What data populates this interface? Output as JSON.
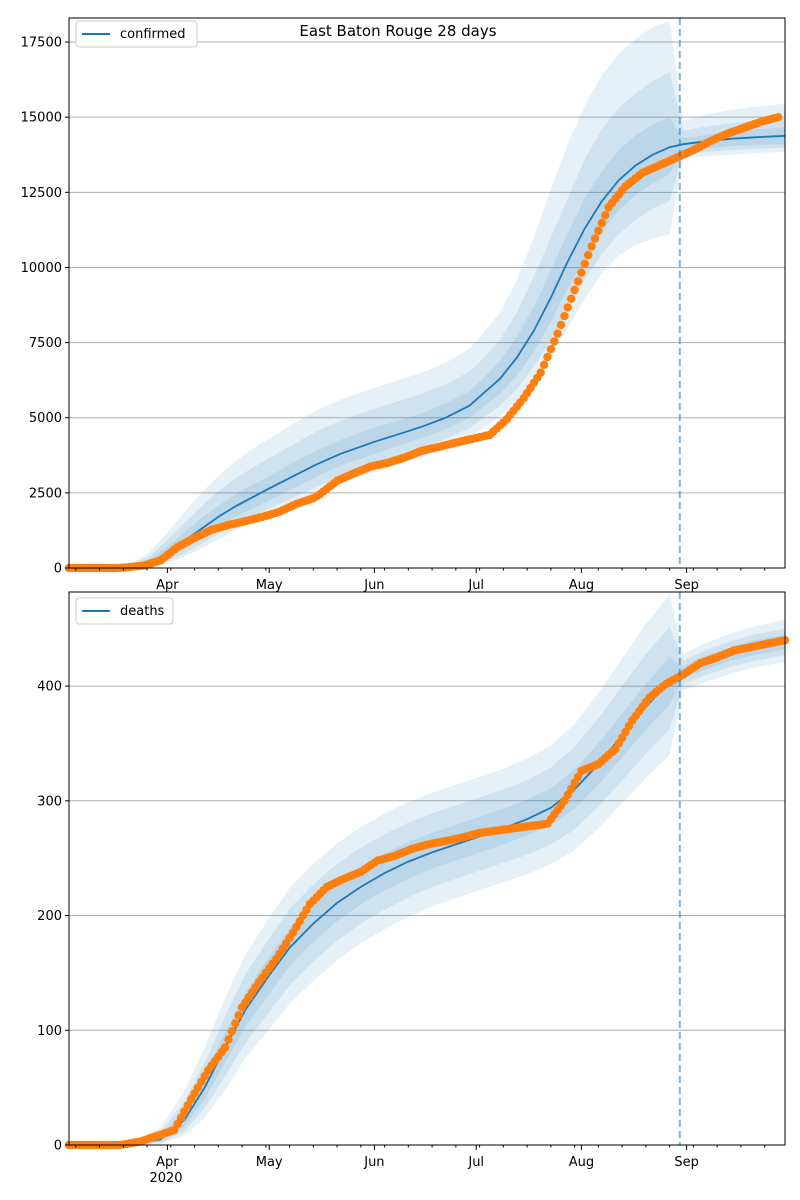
{
  "figure": {
    "title": "East Baton Rouge 28 days",
    "year_label": "2020"
  },
  "colors": {
    "model": "#1f77b4",
    "observed": "#ff7f0e",
    "band": "#1f77b4",
    "grid": "#b0b0b0",
    "forecast_line": "#1f77b4"
  },
  "chart_data": [
    {
      "type": "line",
      "name": "confirmed-panel",
      "legend": "confirmed",
      "legend_location": "top-left",
      "grid": "horizontal",
      "x_axis": {
        "type": "date",
        "range": [
          "2020-03-03",
          "2020-09-30"
        ],
        "tick_labels": [
          "Apr",
          "May",
          "Jun",
          "Jul",
          "Aug",
          "Sep"
        ],
        "tick_dates": [
          "2020-04-01",
          "2020-05-01",
          "2020-06-01",
          "2020-07-01",
          "2020-08-01",
          "2020-09-01"
        ]
      },
      "ylim": [
        0,
        18300
      ],
      "yticks": [
        0,
        2500,
        5000,
        7500,
        10000,
        12500,
        15000,
        17500
      ],
      "forecast_start": "2020-08-30",
      "model": {
        "x": [
          "2020-03-03",
          "2020-03-15",
          "2020-03-22",
          "2020-03-27",
          "2020-04-01",
          "2020-04-06",
          "2020-04-11",
          "2020-04-16",
          "2020-04-21",
          "2020-04-26",
          "2020-05-01",
          "2020-05-08",
          "2020-05-15",
          "2020-05-22",
          "2020-06-01",
          "2020-06-08",
          "2020-06-15",
          "2020-06-22",
          "2020-06-29",
          "2020-07-03",
          "2020-07-08",
          "2020-07-13",
          "2020-07-18",
          "2020-07-23",
          "2020-07-28",
          "2020-08-02",
          "2020-08-07",
          "2020-08-12",
          "2020-08-17",
          "2020-08-22",
          "2020-08-27",
          "2020-08-31",
          "2020-09-07",
          "2020-09-14",
          "2020-09-21",
          "2020-09-30"
        ],
        "median": [
          0,
          0,
          50,
          200,
          500,
          900,
          1300,
          1700,
          2050,
          2350,
          2650,
          3050,
          3450,
          3800,
          4200,
          4450,
          4700,
          5000,
          5400,
          5800,
          6300,
          7000,
          7900,
          9000,
          10200,
          11300,
          12200,
          12900,
          13400,
          13750,
          14000,
          14100,
          14200,
          14280,
          14330,
          14380
        ],
        "lower_50": [
          0,
          0,
          20,
          120,
          330,
          650,
          1000,
          1370,
          1700,
          1980,
          2250,
          2650,
          3050,
          3400,
          3800,
          4070,
          4330,
          4620,
          5000,
          5350,
          5800,
          6400,
          7200,
          8200,
          9300,
          10300,
          11200,
          11900,
          12400,
          12800,
          13100,
          13900,
          13970,
          14030,
          14080,
          14100
        ],
        "upper_50": [
          0,
          0,
          90,
          310,
          720,
          1200,
          1650,
          2070,
          2450,
          2760,
          3050,
          3500,
          3900,
          4260,
          4670,
          4900,
          5150,
          5480,
          5880,
          6300,
          6900,
          7700,
          8700,
          9900,
          11150,
          12300,
          13200,
          13900,
          14400,
          14750,
          15000,
          14300,
          14420,
          14520,
          14590,
          14650
        ],
        "lower_80": [
          0,
          0,
          10,
          70,
          230,
          490,
          800,
          1150,
          1450,
          1720,
          1980,
          2350,
          2700,
          3050,
          3450,
          3700,
          3980,
          4300,
          4650,
          5000,
          5400,
          5950,
          6700,
          7600,
          8600,
          9600,
          10450,
          11100,
          11600,
          11950,
          12200,
          13800,
          13850,
          13900,
          13950,
          13980
        ],
        "upper_80": [
          0,
          0,
          140,
          420,
          940,
          1500,
          2050,
          2550,
          2980,
          3330,
          3650,
          4100,
          4550,
          4900,
          5300,
          5550,
          5800,
          6120,
          6530,
          6970,
          7600,
          8500,
          9700,
          11000,
          12300,
          13600,
          14600,
          15300,
          15800,
          16200,
          16500,
          14550,
          14700,
          14800,
          14880,
          14950
        ],
        "lower_95": [
          0,
          0,
          5,
          40,
          160,
          380,
          650,
          950,
          1250,
          1500,
          1750,
          2100,
          2450,
          2800,
          3200,
          3450,
          3700,
          4020,
          4350,
          4650,
          5050,
          5550,
          6200,
          7050,
          8000,
          8950,
          9800,
          10400,
          10750,
          10950,
          11100,
          13650,
          13700,
          13750,
          13800,
          13850
        ],
        "upper_95": [
          0,
          0,
          190,
          550,
          1180,
          1850,
          2500,
          3060,
          3550,
          3960,
          4300,
          4800,
          5250,
          5600,
          6000,
          6250,
          6500,
          6830,
          7300,
          7800,
          8500,
          9600,
          11000,
          12600,
          14100,
          15400,
          16400,
          17100,
          17600,
          18000,
          18200,
          14900,
          15100,
          15250,
          15350,
          15450
        ]
      },
      "observed": {
        "x": [
          "2020-03-03",
          "2020-03-10",
          "2020-03-17",
          "2020-03-20",
          "2020-03-25",
          "2020-03-30",
          "2020-04-04",
          "2020-04-09",
          "2020-04-14",
          "2020-04-19",
          "2020-04-24",
          "2020-04-29",
          "2020-05-04",
          "2020-05-09",
          "2020-05-14",
          "2020-05-16",
          "2020-05-21",
          "2020-05-26",
          "2020-05-31",
          "2020-06-05",
          "2020-06-10",
          "2020-06-15",
          "2020-06-20",
          "2020-06-25",
          "2020-06-30",
          "2020-07-05",
          "2020-07-10",
          "2020-07-15",
          "2020-07-20",
          "2020-07-25",
          "2020-07-30",
          "2020-08-04",
          "2020-08-09",
          "2020-08-14",
          "2020-08-19",
          "2020-08-24",
          "2020-08-29",
          "2020-09-03",
          "2020-09-08",
          "2020-09-13",
          "2020-09-18",
          "2020-09-23",
          "2020-09-28"
        ],
        "values": [
          0,
          0,
          0,
          20,
          80,
          250,
          700,
          1000,
          1270,
          1430,
          1560,
          1700,
          1870,
          2130,
          2320,
          2460,
          2900,
          3150,
          3380,
          3500,
          3680,
          3900,
          4030,
          4170,
          4300,
          4430,
          4950,
          5650,
          6500,
          7800,
          9250,
          10700,
          12000,
          12700,
          13150,
          13400,
          13650,
          13900,
          14200,
          14450,
          14650,
          14850,
          15000
        ]
      }
    },
    {
      "type": "line",
      "name": "deaths-panel",
      "legend": "deaths",
      "legend_location": "top-left",
      "grid": "horizontal",
      "x_axis": {
        "type": "date",
        "range": [
          "2020-03-03",
          "2020-09-30"
        ],
        "tick_labels": [
          "Apr",
          "May",
          "Jun",
          "Jul",
          "Aug",
          "Sep"
        ],
        "tick_dates": [
          "2020-04-01",
          "2020-05-01",
          "2020-06-01",
          "2020-07-01",
          "2020-08-01",
          "2020-09-01"
        ]
      },
      "ylim": [
        0,
        482
      ],
      "yticks": [
        0,
        100,
        200,
        300,
        400
      ],
      "forecast_start": "2020-08-30",
      "model": {
        "x": [
          "2020-03-03",
          "2020-03-20",
          "2020-03-30",
          "2020-04-06",
          "2020-04-12",
          "2020-04-18",
          "2020-04-24",
          "2020-05-01",
          "2020-05-07",
          "2020-05-14",
          "2020-05-21",
          "2020-05-28",
          "2020-06-04",
          "2020-06-11",
          "2020-06-18",
          "2020-06-25",
          "2020-07-02",
          "2020-07-09",
          "2020-07-16",
          "2020-07-23",
          "2020-07-30",
          "2020-08-06",
          "2020-08-13",
          "2020-08-20",
          "2020-08-27",
          "2020-08-31",
          "2020-09-07",
          "2020-09-14",
          "2020-09-21",
          "2020-09-30"
        ],
        "median": [
          0,
          0,
          5,
          22,
          50,
          85,
          118,
          148,
          172,
          193,
          211,
          225,
          237,
          247,
          255,
          262,
          269,
          276,
          284,
          294,
          310,
          332,
          357,
          382,
          404,
          412,
          421,
          428,
          433,
          438
        ],
        "lower_50": [
          0,
          0,
          3,
          16,
          40,
          72,
          103,
          132,
          156,
          177,
          195,
          210,
          222,
          232,
          241,
          248,
          255,
          262,
          270,
          279,
          293,
          314,
          338,
          362,
          384,
          407,
          415,
          422,
          427,
          432
        ],
        "upper_50": [
          0,
          0,
          8,
          30,
          61,
          98,
          133,
          164,
          189,
          210,
          228,
          242,
          254,
          264,
          272,
          279,
          286,
          293,
          301,
          311,
          327,
          350,
          376,
          402,
          425,
          417,
          427,
          434,
          440,
          445
        ],
        "lower_80": [
          0,
          0,
          2,
          12,
          32,
          60,
          89,
          116,
          139,
          160,
          178,
          193,
          205,
          216,
          225,
          232,
          239,
          246,
          253,
          262,
          275,
          295,
          318,
          341,
          362,
          402,
          410,
          417,
          422,
          427
        ],
        "upper_80": [
          0,
          0,
          11,
          38,
          72,
          112,
          149,
          180,
          206,
          227,
          245,
          259,
          271,
          281,
          289,
          296,
          303,
          310,
          318,
          329,
          347,
          372,
          400,
          428,
          452,
          422,
          432,
          439,
          445,
          450
        ],
        "lower_95": [
          0,
          0,
          1,
          8,
          24,
          48,
          76,
          101,
          123,
          143,
          161,
          176,
          188,
          199,
          208,
          215,
          222,
          229,
          236,
          245,
          257,
          276,
          298,
          320,
          340,
          396,
          404,
          411,
          416,
          421
        ],
        "upper_95": [
          0,
          0,
          15,
          47,
          85,
          128,
          166,
          198,
          224,
          245,
          263,
          277,
          289,
          299,
          307,
          314,
          321,
          328,
          337,
          348,
          367,
          394,
          424,
          454,
          480,
          428,
          438,
          446,
          452,
          458
        ]
      },
      "observed": {
        "x": [
          "2020-03-03",
          "2020-03-18",
          "2020-03-24",
          "2020-03-29",
          "2020-04-03",
          "2020-04-08",
          "2020-04-13",
          "2020-04-18",
          "2020-04-23",
          "2020-04-28",
          "2020-05-03",
          "2020-05-08",
          "2020-05-13",
          "2020-05-18",
          "2020-05-23",
          "2020-05-28",
          "2020-06-02",
          "2020-06-07",
          "2020-06-12",
          "2020-06-17",
          "2020-06-22",
          "2020-06-27",
          "2020-07-02",
          "2020-07-07",
          "2020-07-12",
          "2020-07-17",
          "2020-07-22",
          "2020-07-27",
          "2020-08-01",
          "2020-08-06",
          "2020-08-11",
          "2020-08-16",
          "2020-08-21",
          "2020-08-26",
          "2020-08-31",
          "2020-09-05",
          "2020-09-10",
          "2020-09-15",
          "2020-09-20",
          "2020-09-25",
          "2020-09-30"
        ],
        "values": [
          0,
          0,
          3,
          8,
          13,
          40,
          65,
          85,
          120,
          142,
          162,
          185,
          210,
          225,
          232,
          238,
          248,
          252,
          258,
          262,
          265,
          268,
          272,
          274,
          276,
          278,
          280,
          300,
          326,
          332,
          345,
          370,
          390,
          402,
          410,
          420,
          425,
          431,
          434,
          437,
          440
        ]
      }
    }
  ]
}
